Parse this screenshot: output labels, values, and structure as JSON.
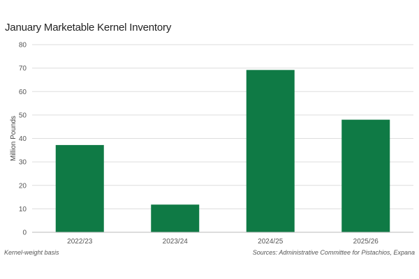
{
  "chart_data": {
    "type": "bar",
    "title": "January Marketable Kernel Inventory",
    "categories": [
      "2022/23",
      "2023/24",
      "2024/25",
      "2025/26"
    ],
    "values": [
      37.2,
      11.8,
      69.2,
      48.0
    ],
    "xlabel": "",
    "ylabel": "Million Pounds",
    "ylim": [
      0,
      80
    ],
    "yticks": [
      0,
      10,
      20,
      30,
      40,
      50,
      60,
      70,
      80
    ],
    "grid": true,
    "legend": "none",
    "bar_color": "#0f7a45",
    "grid_color": "#dddddd"
  },
  "footer": {
    "note": "Kernel-weight basis",
    "source": "Sources: Administrative Committee for Pistachios, Expana"
  }
}
